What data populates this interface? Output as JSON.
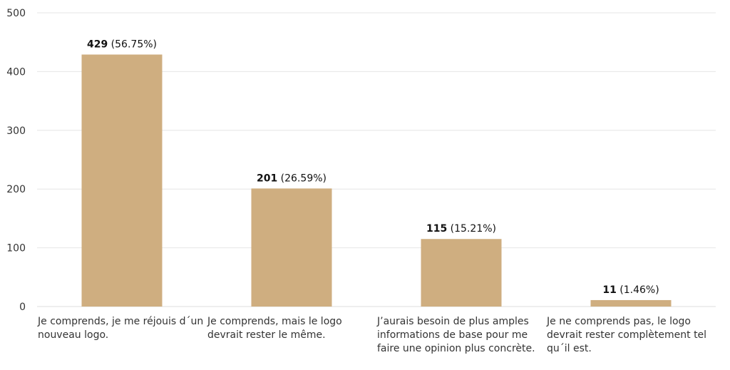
{
  "chart_data": {
    "type": "bar",
    "title": "",
    "xlabel": "",
    "ylabel": "",
    "ylim": [
      0,
      500
    ],
    "yticks": [
      0,
      100,
      200,
      300,
      400,
      500
    ],
    "grid": true,
    "legend": "none",
    "bar_color": "#cfae80",
    "categories": [
      [
        "Je comprends, je me réjouis d´un",
        "nouveau logo."
      ],
      [
        "Je comprends, mais le logo",
        "devrait rester le même."
      ],
      [
        "J’aurais besoin de plus amples",
        "informations de base pour me",
        "faire une opinion plus concrète."
      ],
      [
        "Je ne comprends pas, le logo",
        "devrait rester complètement tel",
        "qu´il est."
      ]
    ],
    "values": [
      429,
      201,
      115,
      11
    ],
    "percent_labels": [
      "(56.75%)",
      "(26.59%)",
      "(15.21%)",
      "(1.46%)"
    ]
  }
}
